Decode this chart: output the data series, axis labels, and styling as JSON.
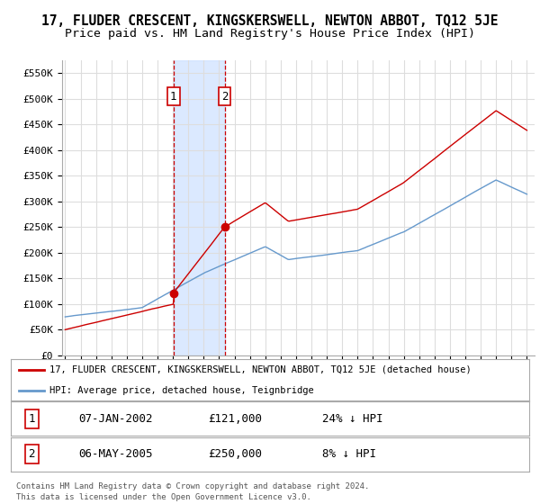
{
  "title": "17, FLUDER CRESCENT, KINGSKERSWELL, NEWTON ABBOT, TQ12 5JE",
  "subtitle": "Price paid vs. HM Land Registry's House Price Index (HPI)",
  "title_fontsize": 10.5,
  "subtitle_fontsize": 9.5,
  "ylabel_ticks": [
    "£0",
    "£50K",
    "£100K",
    "£150K",
    "£200K",
    "£250K",
    "£300K",
    "£350K",
    "£400K",
    "£450K",
    "£500K",
    "£550K"
  ],
  "ytick_values": [
    0,
    50000,
    100000,
    150000,
    200000,
    250000,
    300000,
    350000,
    400000,
    450000,
    500000,
    550000
  ],
  "ylim": [
    0,
    575000
  ],
  "xlim_start": 1994.8,
  "xlim_end": 2025.5,
  "transaction1": {
    "date_num": 2002.03,
    "price": 121000,
    "label": "1"
  },
  "transaction2": {
    "date_num": 2005.36,
    "price": 250000,
    "label": "2"
  },
  "legend_entry1": "17, FLUDER CRESCENT, KINGSKERSWELL, NEWTON ABBOT, TQ12 5JE (detached house)",
  "legend_entry2": "HPI: Average price, detached house, Teignbridge",
  "table_rows": [
    {
      "num": "1",
      "date": "07-JAN-2002",
      "price": "£121,000",
      "hpi": "24% ↓ HPI"
    },
    {
      "num": "2",
      "date": "06-MAY-2005",
      "price": "£250,000",
      "hpi": "8% ↓ HPI"
    }
  ],
  "footer_line1": "Contains HM Land Registry data © Crown copyright and database right 2024.",
  "footer_line2": "This data is licensed under the Open Government Licence v3.0.",
  "line_color_red": "#cc0000",
  "line_color_blue": "#6699cc",
  "shade_color": "#cce0ff",
  "marker_box_color": "#cc0000",
  "grid_color": "#dddddd",
  "bg_color": "#ffffff"
}
